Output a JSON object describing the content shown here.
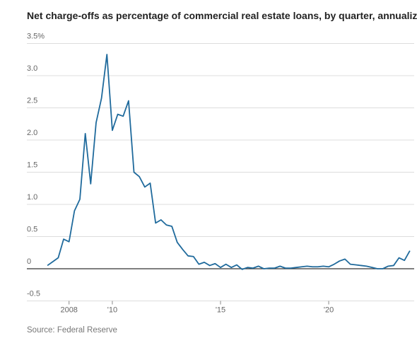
{
  "chart_data": {
    "type": "line",
    "title": "Net charge-offs as percentage of commercial real estate loans, by quarter, annualized",
    "source": "Source: Federal Reserve",
    "x": [
      2007.0,
      2007.25,
      2007.5,
      2007.75,
      2008.0,
      2008.25,
      2008.5,
      2008.75,
      2009.0,
      2009.25,
      2009.5,
      2009.75,
      2010.0,
      2010.25,
      2010.5,
      2010.75,
      2011.0,
      2011.25,
      2011.5,
      2011.75,
      2012.0,
      2012.25,
      2012.5,
      2012.75,
      2013.0,
      2013.25,
      2013.5,
      2013.75,
      2014.0,
      2014.25,
      2014.5,
      2014.75,
      2015.0,
      2015.25,
      2015.5,
      2015.75,
      2016.0,
      2016.25,
      2016.5,
      2016.75,
      2017.0,
      2017.25,
      2017.5,
      2017.75,
      2018.0,
      2018.25,
      2018.5,
      2018.75,
      2019.0,
      2019.25,
      2019.5,
      2019.75,
      2020.0,
      2020.25,
      2020.5,
      2020.75,
      2021.0,
      2021.25,
      2021.5,
      2021.75,
      2022.0,
      2022.25,
      2022.5,
      2022.75,
      2023.0,
      2023.25,
      2023.5,
      2023.75
    ],
    "series": [
      {
        "name": "Net charge-offs",
        "color": "#1f6a9c",
        "values": [
          0.05,
          0.11,
          0.17,
          0.46,
          0.42,
          0.9,
          1.08,
          2.1,
          1.32,
          2.27,
          2.65,
          3.33,
          2.15,
          2.4,
          2.37,
          2.61,
          1.5,
          1.43,
          1.27,
          1.33,
          0.71,
          0.76,
          0.68,
          0.66,
          0.41,
          0.3,
          0.2,
          0.19,
          0.07,
          0.1,
          0.05,
          0.08,
          0.02,
          0.07,
          0.02,
          0.06,
          -0.01,
          0.02,
          0.01,
          0.04,
          0.0,
          0.01,
          0.01,
          0.04,
          0.01,
          0.01,
          0.02,
          0.03,
          0.04,
          0.03,
          0.03,
          0.04,
          0.03,
          0.07,
          0.12,
          0.15,
          0.07,
          0.06,
          0.05,
          0.04,
          0.02,
          0.0,
          0.0,
          0.04,
          0.05,
          0.17,
          0.13,
          0.28
        ]
      }
    ],
    "xlim": [
      2006.05,
      2023.95
    ],
    "xticks": [
      2008,
      {
        "value": 2010,
        "label": "'10"
      },
      {
        "value": 2015,
        "label": "'15"
      },
      {
        "value": 2020,
        "label": "'20"
      }
    ],
    "ylim": [
      -0.5,
      3.5
    ],
    "yticks": [
      -0.5,
      0,
      0.5,
      {
        "value": 1,
        "label": "1.0"
      },
      1.5,
      {
        "value": 2,
        "label": "2.0"
      },
      2.5,
      {
        "value": 3,
        "label": "3.0"
      },
      {
        "value": 3.5,
        "label": "3.5%"
      }
    ],
    "grid": true
  }
}
